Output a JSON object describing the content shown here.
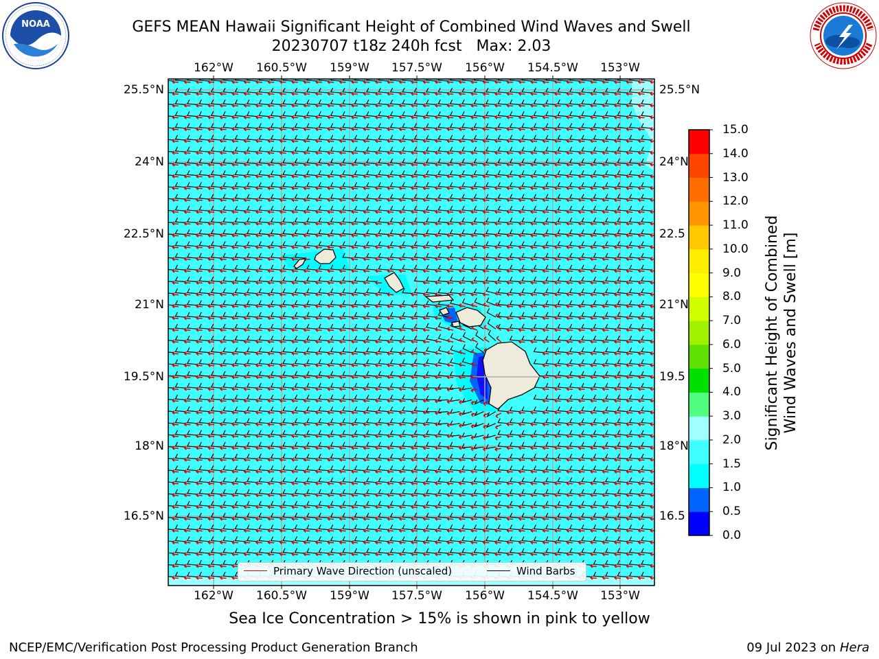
{
  "title_line1": "GEFS MEAN Hawaii Significant Height of Combined Wind Waves and Swell",
  "title_line2": "20230707 t18z 240h fcst   Max: 2.03",
  "lon_ticks": [
    "162°W",
    "160.5°W",
    "159°W",
    "157.5°W",
    "156°W",
    "154.5°W",
    "153°W"
  ],
  "lat_ticks": [
    "25.5°N",
    "24°N",
    "22.5°N",
    "21°N",
    "19.5°N",
    "18°N",
    "16.5°N"
  ],
  "lat_ticks_right_visible": [
    "25.5°N",
    "24°N",
    "22.5",
    "21°N",
    "19.5",
    "18°N",
    "16.5"
  ],
  "colorbar": {
    "label_line1": "Significant Height of Combined",
    "label_line2": "Wind Waves and Swell [m]",
    "ticks": [
      "0.0",
      "0.5",
      "1.0",
      "1.5",
      "2.0",
      "3.0",
      "4.0",
      "5.0",
      "6.0",
      "7.0",
      "8.0",
      "9.0",
      "10.0",
      "11.0",
      "12.0",
      "13.0",
      "14.0",
      "15.0"
    ],
    "colors": [
      "#0000ff",
      "#0064ff",
      "#00ffff",
      "#40ffff",
      "#a0ffff",
      "#50ff80",
      "#00e000",
      "#60e000",
      "#a0f000",
      "#d0ff00",
      "#ffff00",
      "#ffee00",
      "#ffc800",
      "#ff9600",
      "#ff6e00",
      "#ff4600",
      "#ff0000"
    ]
  },
  "legend": {
    "wave_direction": "Primary Wave Direction (unscaled)",
    "wave_color": "#e00000",
    "wind_barbs": "Wind Barbs",
    "barb_color": "#000000"
  },
  "map_colors": {
    "ocean": "#40ffff",
    "light_ocean": "#a0ffff",
    "shallow": "#00ffff",
    "calm": "#0064ff",
    "land": "#eeeadc",
    "grid": "#aaaaaa"
  },
  "subtitle": "Sea Ice Concentration > 15% is shown in pink to yellow",
  "footer_left": "NCEP/EMC/Verification Post Processing Product Generation Branch",
  "footer_right_text": "09 Jul 2023 on ",
  "footer_right_host": "Hera"
}
